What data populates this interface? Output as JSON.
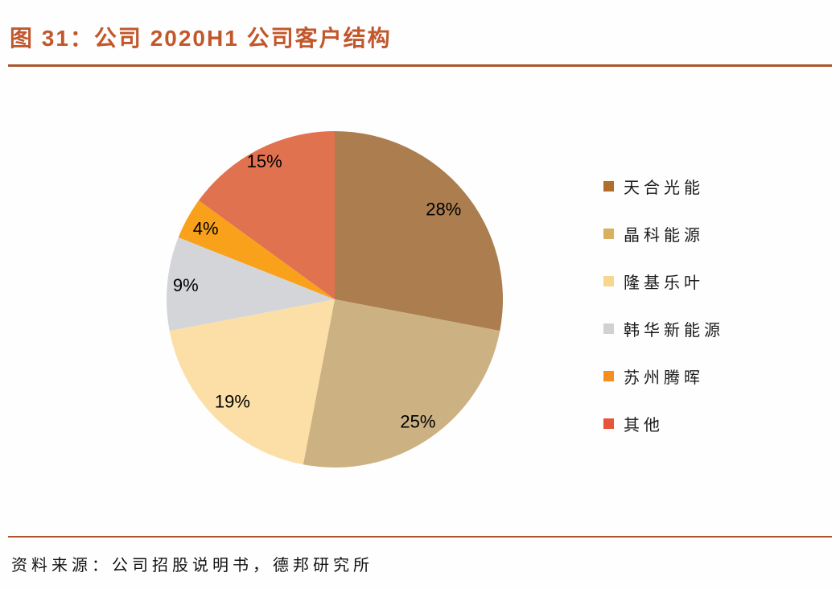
{
  "title": {
    "text": "图 31：公司 2020H1 公司客户结构"
  },
  "source": {
    "text": "资料来源：公司招股说明书，德邦研究所"
  },
  "accent": {
    "title_color": "#c2572c",
    "rule_color": "#a9542b"
  },
  "chart_data": {
    "type": "pie",
    "title": "公司 2020H1 公司客户结构",
    "categories": [
      "天合光能",
      "晶科能源",
      "隆基乐叶",
      "韩华新能源",
      "苏州腾晖",
      "其他"
    ],
    "values": [
      28,
      25,
      19,
      9,
      4,
      15
    ],
    "labels": [
      "28%",
      "25%",
      "19%",
      "9%",
      "4%",
      "15%"
    ],
    "slice_colors": [
      "#AB7D4F",
      "#CCB182",
      "#FBDFA6",
      "#D3D5D8",
      "#F9A11B",
      "#E17250"
    ],
    "legend_colors": [
      "#B06E28",
      "#D8B062",
      "#F5D78F",
      "#D1D1D1",
      "#F68D1E",
      "#E8533A"
    ],
    "label_color": "#000000",
    "start_angle_deg": 0,
    "direction": "clockwise",
    "legend_position": "right",
    "grid": false
  }
}
